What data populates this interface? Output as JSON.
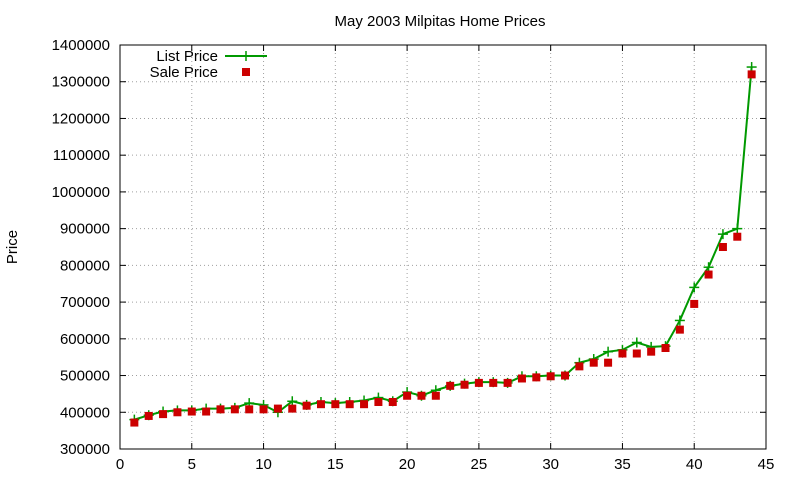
{
  "chart_data": {
    "type": "line",
    "title": "May 2003 Milpitas Home Prices",
    "xlabel": "",
    "ylabel": "Price",
    "xlim": [
      0,
      45
    ],
    "ylim": [
      300000,
      1400000
    ],
    "xticks": [
      0,
      5,
      10,
      15,
      20,
      25,
      30,
      35,
      40,
      45
    ],
    "yticks": [
      300000,
      400000,
      500000,
      600000,
      700000,
      800000,
      900000,
      1000000,
      1100000,
      1200000,
      1300000,
      1400000
    ],
    "grid": true,
    "legend_position": "top-left",
    "series": [
      {
        "name": "List Price",
        "style": "line-with-plus-markers",
        "color": "#009900",
        "x": [
          1,
          2,
          3,
          4,
          5,
          6,
          7,
          8,
          9,
          10,
          11,
          12,
          13,
          14,
          15,
          16,
          17,
          18,
          19,
          20,
          21,
          22,
          23,
          24,
          25,
          26,
          27,
          28,
          29,
          30,
          31,
          32,
          33,
          34,
          35,
          36,
          37,
          38,
          39,
          40,
          41,
          42,
          43,
          44
        ],
        "values": [
          380000,
          392000,
          402000,
          405000,
          405000,
          410000,
          410000,
          412000,
          425000,
          420000,
          400000,
          430000,
          420000,
          428000,
          425000,
          428000,
          432000,
          440000,
          430000,
          455000,
          445000,
          460000,
          472000,
          478000,
          482000,
          482000,
          480000,
          498000,
          498000,
          500000,
          500000,
          535000,
          545000,
          565000,
          570000,
          590000,
          578000,
          580000,
          650000,
          740000,
          795000,
          885000,
          900000,
          1340000
        ]
      },
      {
        "name": "Sale Price",
        "style": "square-markers",
        "color": "#cc0000",
        "x": [
          1,
          2,
          3,
          4,
          5,
          6,
          7,
          8,
          9,
          10,
          11,
          12,
          13,
          14,
          15,
          16,
          17,
          18,
          19,
          20,
          21,
          22,
          23,
          24,
          25,
          26,
          27,
          28,
          29,
          30,
          31,
          32,
          33,
          34,
          35,
          36,
          37,
          38,
          39,
          40,
          41,
          42,
          43,
          44
        ],
        "values": [
          372000,
          390000,
          395000,
          400000,
          402000,
          402000,
          408000,
          408000,
          408000,
          408000,
          410000,
          410000,
          418000,
          422000,
          422000,
          422000,
          422000,
          428000,
          428000,
          445000,
          445000,
          445000,
          472000,
          475000,
          480000,
          480000,
          480000,
          492000,
          495000,
          498000,
          500000,
          525000,
          535000,
          535000,
          560000,
          560000,
          565000,
          575000,
          625000,
          695000,
          775000,
          850000,
          878000,
          1320000
        ]
      }
    ]
  }
}
